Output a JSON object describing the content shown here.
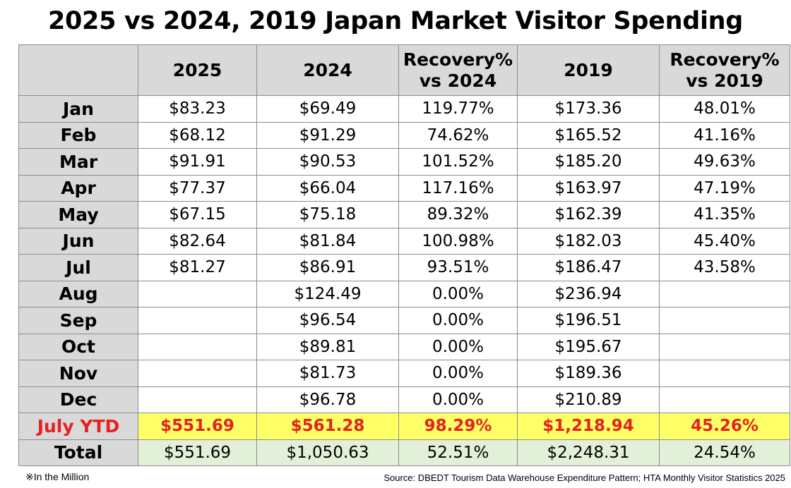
{
  "chart_data": {
    "type": "table",
    "title": "2025 vs 2024, 2019 Japan Market Visitor Spending",
    "columns": [
      "",
      "2025",
      "2024",
      "Recovery%\nvs 2024",
      "2019",
      "Recovery%\nvs 2019"
    ],
    "rows": [
      {
        "label": "Jan",
        "values": [
          "$83.23",
          "$69.49",
          "119.77%",
          "$173.36",
          "48.01%"
        ]
      },
      {
        "label": "Feb",
        "values": [
          "$68.12",
          "$91.29",
          "74.62%",
          "$165.52",
          "41.16%"
        ]
      },
      {
        "label": "Mar",
        "values": [
          "$91.91",
          "$90.53",
          "101.52%",
          "$185.20",
          "49.63%"
        ]
      },
      {
        "label": "Apr",
        "values": [
          "$77.37",
          "$66.04",
          "117.16%",
          "$163.97",
          "47.19%"
        ]
      },
      {
        "label": "May",
        "values": [
          "$67.15",
          "$75.18",
          "89.32%",
          "$162.39",
          "41.35%"
        ]
      },
      {
        "label": "Jun",
        "values": [
          "$82.64",
          "$81.84",
          "100.98%",
          "$182.03",
          "45.40%"
        ]
      },
      {
        "label": "Jul",
        "values": [
          "$81.27",
          "$86.91",
          "93.51%",
          "$186.47",
          "43.58%"
        ]
      },
      {
        "label": "Aug",
        "values": [
          "",
          "$124.49",
          "0.00%",
          "$236.94",
          ""
        ]
      },
      {
        "label": "Sep",
        "values": [
          "",
          "$96.54",
          "0.00%",
          "$196.51",
          ""
        ]
      },
      {
        "label": "Oct",
        "values": [
          "",
          "$89.81",
          "0.00%",
          "$195.67",
          ""
        ]
      },
      {
        "label": "Nov",
        "values": [
          "",
          "$81.73",
          "0.00%",
          "$189.36",
          ""
        ]
      },
      {
        "label": "Dec",
        "values": [
          "",
          "$96.78",
          "0.00%",
          "$210.89",
          ""
        ]
      }
    ],
    "ytd": {
      "label": "July YTD",
      "values": [
        "$551.69",
        "$561.28",
        "98.29%",
        "$1,218.94",
        "45.26%"
      ]
    },
    "total": {
      "label": "Total",
      "values": [
        "$551.69",
        "$1,050.63",
        "52.51%",
        "$2,248.31",
        "24.54%"
      ]
    },
    "footnote": "※In the Million",
    "source": "Source: DBEDT Tourism Data Warehouse Expenditure Pattern; HTA Monthly Visitor Statistics 2025"
  },
  "colors": {
    "header_bg": "#d9d9d9",
    "ytd_bg": "#ffff66",
    "ytd_text": "#e52121",
    "total_bg": "#e2efd9"
  }
}
